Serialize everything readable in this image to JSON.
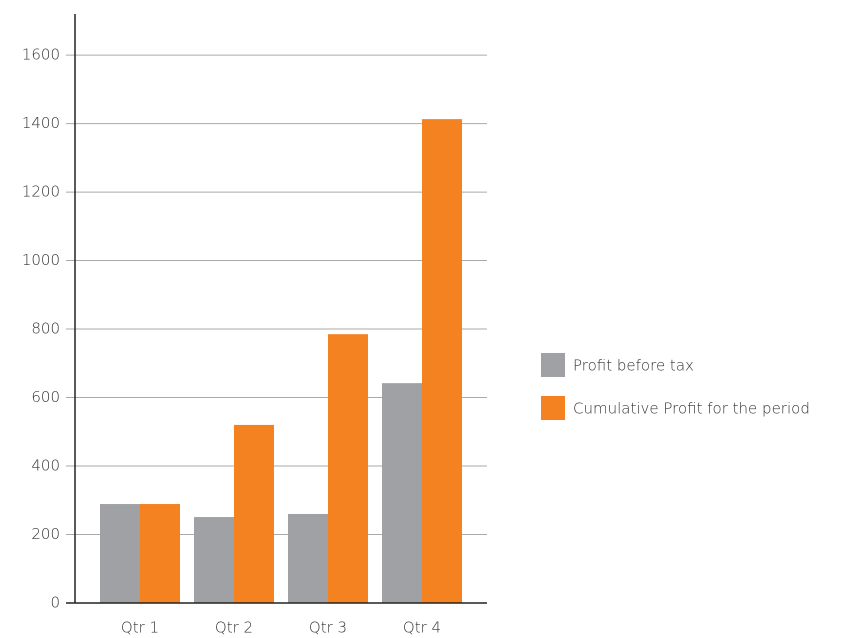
{
  "chart_data": {
    "type": "bar",
    "categories": [
      "Qtr 1",
      "Qtr 2",
      "Qtr 3",
      "Qtr 4"
    ],
    "series": [
      {
        "name": "Profit before tax",
        "color": "#a0a1a5",
        "values": [
          289,
          251,
          260,
          642
        ]
      },
      {
        "name": "Cumulative Profit for the period",
        "color": "#f58220",
        "values": [
          289,
          520,
          785,
          1413
        ]
      }
    ],
    "ylim": [
      0,
      1720
    ],
    "yticks": [
      0,
      200,
      400,
      600,
      800,
      1000,
      1200,
      1400,
      1600
    ],
    "grid": true,
    "legend": "right"
  }
}
